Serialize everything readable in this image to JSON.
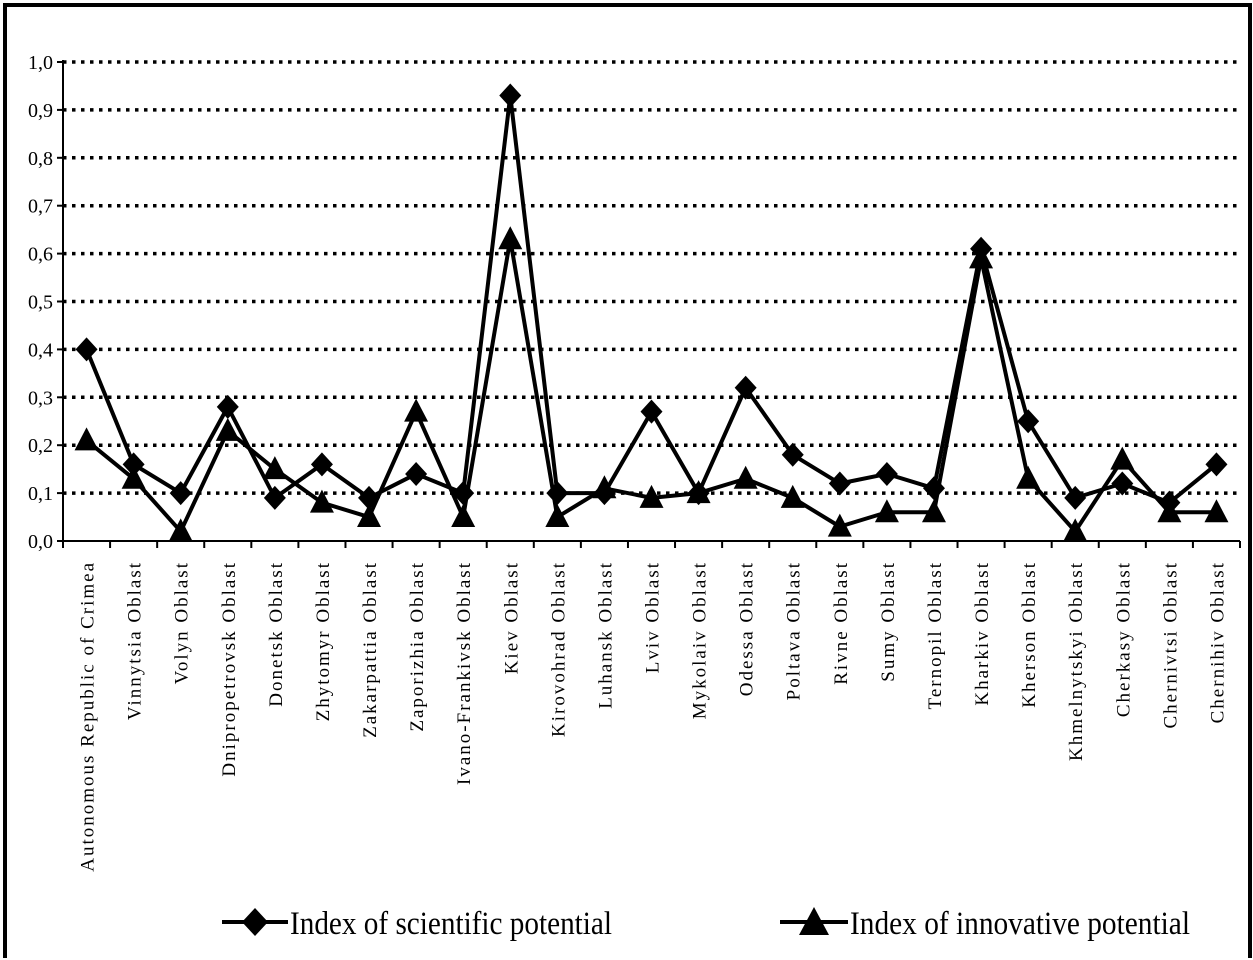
{
  "chart_data": {
    "type": "line",
    "title": "",
    "xlabel": "",
    "ylabel": "",
    "ylim": [
      0,
      1.0
    ],
    "yticks": [
      "0,0",
      "0,1",
      "0,2",
      "0,3",
      "0,4",
      "0,5",
      "0,6",
      "0,7",
      "0,8",
      "0,9",
      "1,0"
    ],
    "grid": "horizontal dotted",
    "legend_position": "bottom",
    "categories": [
      "Autonomous Republic of Crimea",
      "Vinnytsia Oblast",
      "Volyn Oblast",
      "Dnipropetrovsk Oblast",
      "Donetsk Oblast",
      "Zhytomyr Oblast",
      "Zakarpattia Oblast",
      "Zaporizhia Oblast",
      "Ivano-Frankivsk Oblast",
      "Kiev Oblast",
      "Kirovohrad Oblast",
      "Luhansk Oblast",
      "Lviv Oblast",
      "Mykolaiv Oblast",
      "Odessa Oblast",
      "Poltava Oblast",
      "Rivne Oblast",
      "Sumy Oblast",
      "Ternopil Oblast",
      "Kharkiv Oblast",
      "Kherson Oblast",
      "Khmelnytskyi Oblast",
      "Cherkasy Oblast",
      "Chernivtsi Oblast",
      "Chernihiv Oblast"
    ],
    "series": [
      {
        "name": "Index of scientific potential",
        "marker": "diamond",
        "color": "#000000",
        "values": [
          0.4,
          0.16,
          0.1,
          0.28,
          0.09,
          0.16,
          0.09,
          0.14,
          0.1,
          0.93,
          0.1,
          0.1,
          0.27,
          0.1,
          0.32,
          0.18,
          0.12,
          0.14,
          0.11,
          0.61,
          0.25,
          0.09,
          0.12,
          0.08,
          0.16
        ]
      },
      {
        "name": "Index of innovative potential",
        "marker": "triangle",
        "color": "#000000",
        "values": [
          0.21,
          0.13,
          0.02,
          0.23,
          0.15,
          0.08,
          0.05,
          0.27,
          0.05,
          0.63,
          0.05,
          0.11,
          0.09,
          0.1,
          0.13,
          0.09,
          0.03,
          0.06,
          0.06,
          0.59,
          0.13,
          0.02,
          0.17,
          0.06,
          0.06
        ]
      }
    ]
  }
}
